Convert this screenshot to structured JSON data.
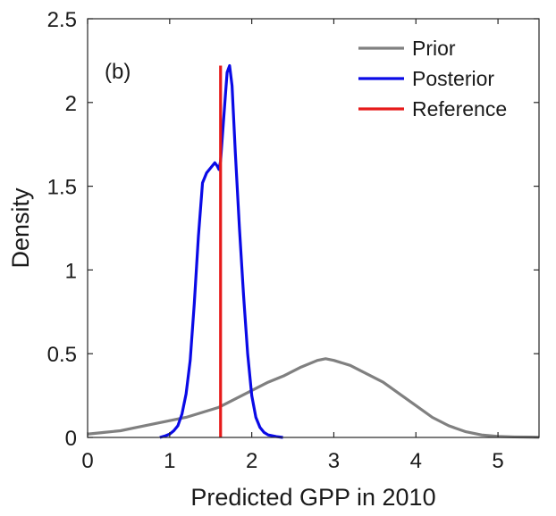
{
  "chart_data": {
    "type": "line",
    "panel_label": "(b)",
    "xlabel": "Predicted GPP in 2010",
    "ylabel": "Density",
    "xlim": [
      0,
      5.5
    ],
    "ylim": [
      0,
      2.5
    ],
    "xticks": [
      0,
      1,
      2,
      3,
      4,
      5
    ],
    "xtick_labels": [
      "0",
      "1",
      "2",
      "3",
      "4",
      "5"
    ],
    "yticks": [
      0,
      0.5,
      1,
      1.5,
      2,
      2.5
    ],
    "ytick_labels": [
      "0",
      "0.5",
      "1",
      "1.5",
      "2",
      "2.5"
    ],
    "grid": false,
    "legend_position": "top-right",
    "series": [
      {
        "name": "Prior",
        "color": "#808080",
        "x": [
          0,
          0.2,
          0.4,
          0.6,
          0.8,
          1.0,
          1.2,
          1.4,
          1.6,
          1.8,
          2.0,
          2.2,
          2.4,
          2.6,
          2.8,
          2.9,
          3.0,
          3.2,
          3.4,
          3.6,
          3.8,
          4.0,
          4.2,
          4.4,
          4.6,
          4.8,
          5.0,
          5.2,
          5.4,
          5.5
        ],
        "y": [
          0.02,
          0.03,
          0.04,
          0.06,
          0.08,
          0.1,
          0.12,
          0.15,
          0.18,
          0.23,
          0.28,
          0.33,
          0.37,
          0.42,
          0.46,
          0.47,
          0.46,
          0.43,
          0.38,
          0.33,
          0.26,
          0.19,
          0.12,
          0.07,
          0.035,
          0.015,
          0.006,
          0.003,
          0.002,
          0.001
        ]
      },
      {
        "name": "Posterior",
        "color": "#0a0ae6",
        "x": [
          0.88,
          0.95,
          1.0,
          1.05,
          1.1,
          1.15,
          1.2,
          1.25,
          1.3,
          1.35,
          1.4,
          1.45,
          1.5,
          1.55,
          1.58,
          1.6,
          1.62,
          1.65,
          1.68,
          1.7,
          1.73,
          1.76,
          1.8,
          1.85,
          1.9,
          1.95,
          2.0,
          2.05,
          2.1,
          2.15,
          2.2,
          2.3,
          2.38
        ],
        "y": [
          0.0,
          0.01,
          0.02,
          0.04,
          0.07,
          0.14,
          0.26,
          0.46,
          0.8,
          1.2,
          1.52,
          1.58,
          1.61,
          1.64,
          1.62,
          1.6,
          1.65,
          1.85,
          2.05,
          2.18,
          2.22,
          2.1,
          1.7,
          1.25,
          0.85,
          0.5,
          0.25,
          0.12,
          0.06,
          0.03,
          0.015,
          0.005,
          0.0
        ]
      },
      {
        "name": "Reference",
        "color": "#e61a1a",
        "type": "vline",
        "x": [
          1.62,
          1.62
        ],
        "y": [
          0,
          2.22
        ]
      }
    ]
  }
}
